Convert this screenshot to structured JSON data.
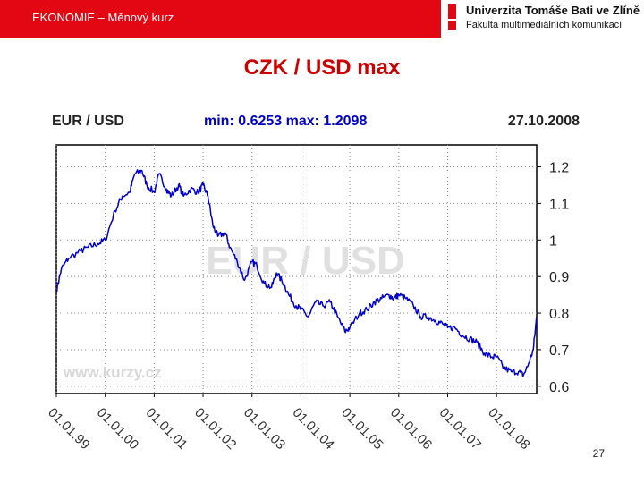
{
  "header": {
    "section_title": "EKONOMIE – Měnový kurz",
    "logo_line1": "Univerzita Tomáše Bati ve Zlíně",
    "logo_line2": "Fakulta multimediálních komunikací",
    "brand_color": "#e30613"
  },
  "slide": {
    "title": "CZK / USD max",
    "page_number": "27",
    "title_color": "#cc0000"
  },
  "chart_data": {
    "type": "line",
    "title": "EUR / USD",
    "stats": "min: 0.6253   max: 1.2098",
    "date": "27.10.2008",
    "watermark": "EUR / USD",
    "source_watermark": "www.kurzy.cz",
    "ylim": [
      0.58,
      1.26
    ],
    "yticks": [
      0.6,
      0.7,
      0.8,
      0.9,
      1,
      1.1,
      1.2
    ],
    "ytick_labels": [
      "0.6",
      "0.7",
      "0.8",
      "0.9",
      "1",
      "1.1",
      "1.2"
    ],
    "xlim": [
      1999.0,
      2008.82
    ],
    "xticks": [
      1999,
      2000,
      2001,
      2002,
      2003,
      2004,
      2005,
      2006,
      2007,
      2008
    ],
    "xtick_labels": [
      "01.01.99",
      "01.01.00",
      "01.01.01",
      "01.01.02",
      "01.01.03",
      "01.01.04",
      "01.01.05",
      "01.01.06",
      "01.01.07",
      "01.01.08"
    ],
    "grid": true,
    "line_color": "#0000cc",
    "series": [
      {
        "x": [
          1999.0,
          1999.1,
          1999.25,
          1999.5,
          1999.65,
          1999.85,
          2000.0,
          2000.2,
          2000.35,
          2000.5,
          2000.6,
          2000.75,
          2000.85,
          2001.0,
          2001.1,
          2001.25,
          2001.35,
          2001.5,
          2001.6,
          2001.75,
          2001.9,
          2002.0,
          2002.1,
          2002.2,
          2002.3,
          2002.45,
          2002.55,
          2002.7,
          2002.85,
          2003.0,
          2003.1,
          2003.25,
          2003.4,
          2003.5,
          2003.65,
          2003.75,
          2003.9,
          2004.0,
          2004.15,
          2004.3,
          2004.45,
          2004.6,
          2004.75,
          2004.9,
          2005.0,
          2005.2,
          2005.35,
          2005.5,
          2005.65,
          2005.8,
          2005.9,
          2006.0,
          2006.15,
          2006.3,
          2006.45,
          2006.6,
          2006.75,
          2006.9,
          2007.0,
          2007.15,
          2007.3,
          2007.45,
          2007.6,
          2007.75,
          2007.9,
          2008.0,
          2008.15,
          2008.3,
          2008.45,
          2008.55,
          2008.65,
          2008.75,
          2008.82
        ],
        "values": [
          0.86,
          0.92,
          0.95,
          0.97,
          0.98,
          0.99,
          1.0,
          1.08,
          1.12,
          1.13,
          1.18,
          1.19,
          1.15,
          1.13,
          1.18,
          1.14,
          1.12,
          1.15,
          1.12,
          1.14,
          1.13,
          1.15,
          1.12,
          1.04,
          1.01,
          1.02,
          0.98,
          0.94,
          0.89,
          0.94,
          0.93,
          0.88,
          0.87,
          0.91,
          0.88,
          0.85,
          0.82,
          0.81,
          0.79,
          0.83,
          0.82,
          0.83,
          0.79,
          0.75,
          0.76,
          0.8,
          0.81,
          0.83,
          0.84,
          0.85,
          0.84,
          0.85,
          0.84,
          0.82,
          0.79,
          0.79,
          0.78,
          0.77,
          0.76,
          0.76,
          0.74,
          0.73,
          0.72,
          0.69,
          0.68,
          0.68,
          0.65,
          0.64,
          0.64,
          0.63,
          0.66,
          0.7,
          0.79
        ]
      }
    ]
  }
}
